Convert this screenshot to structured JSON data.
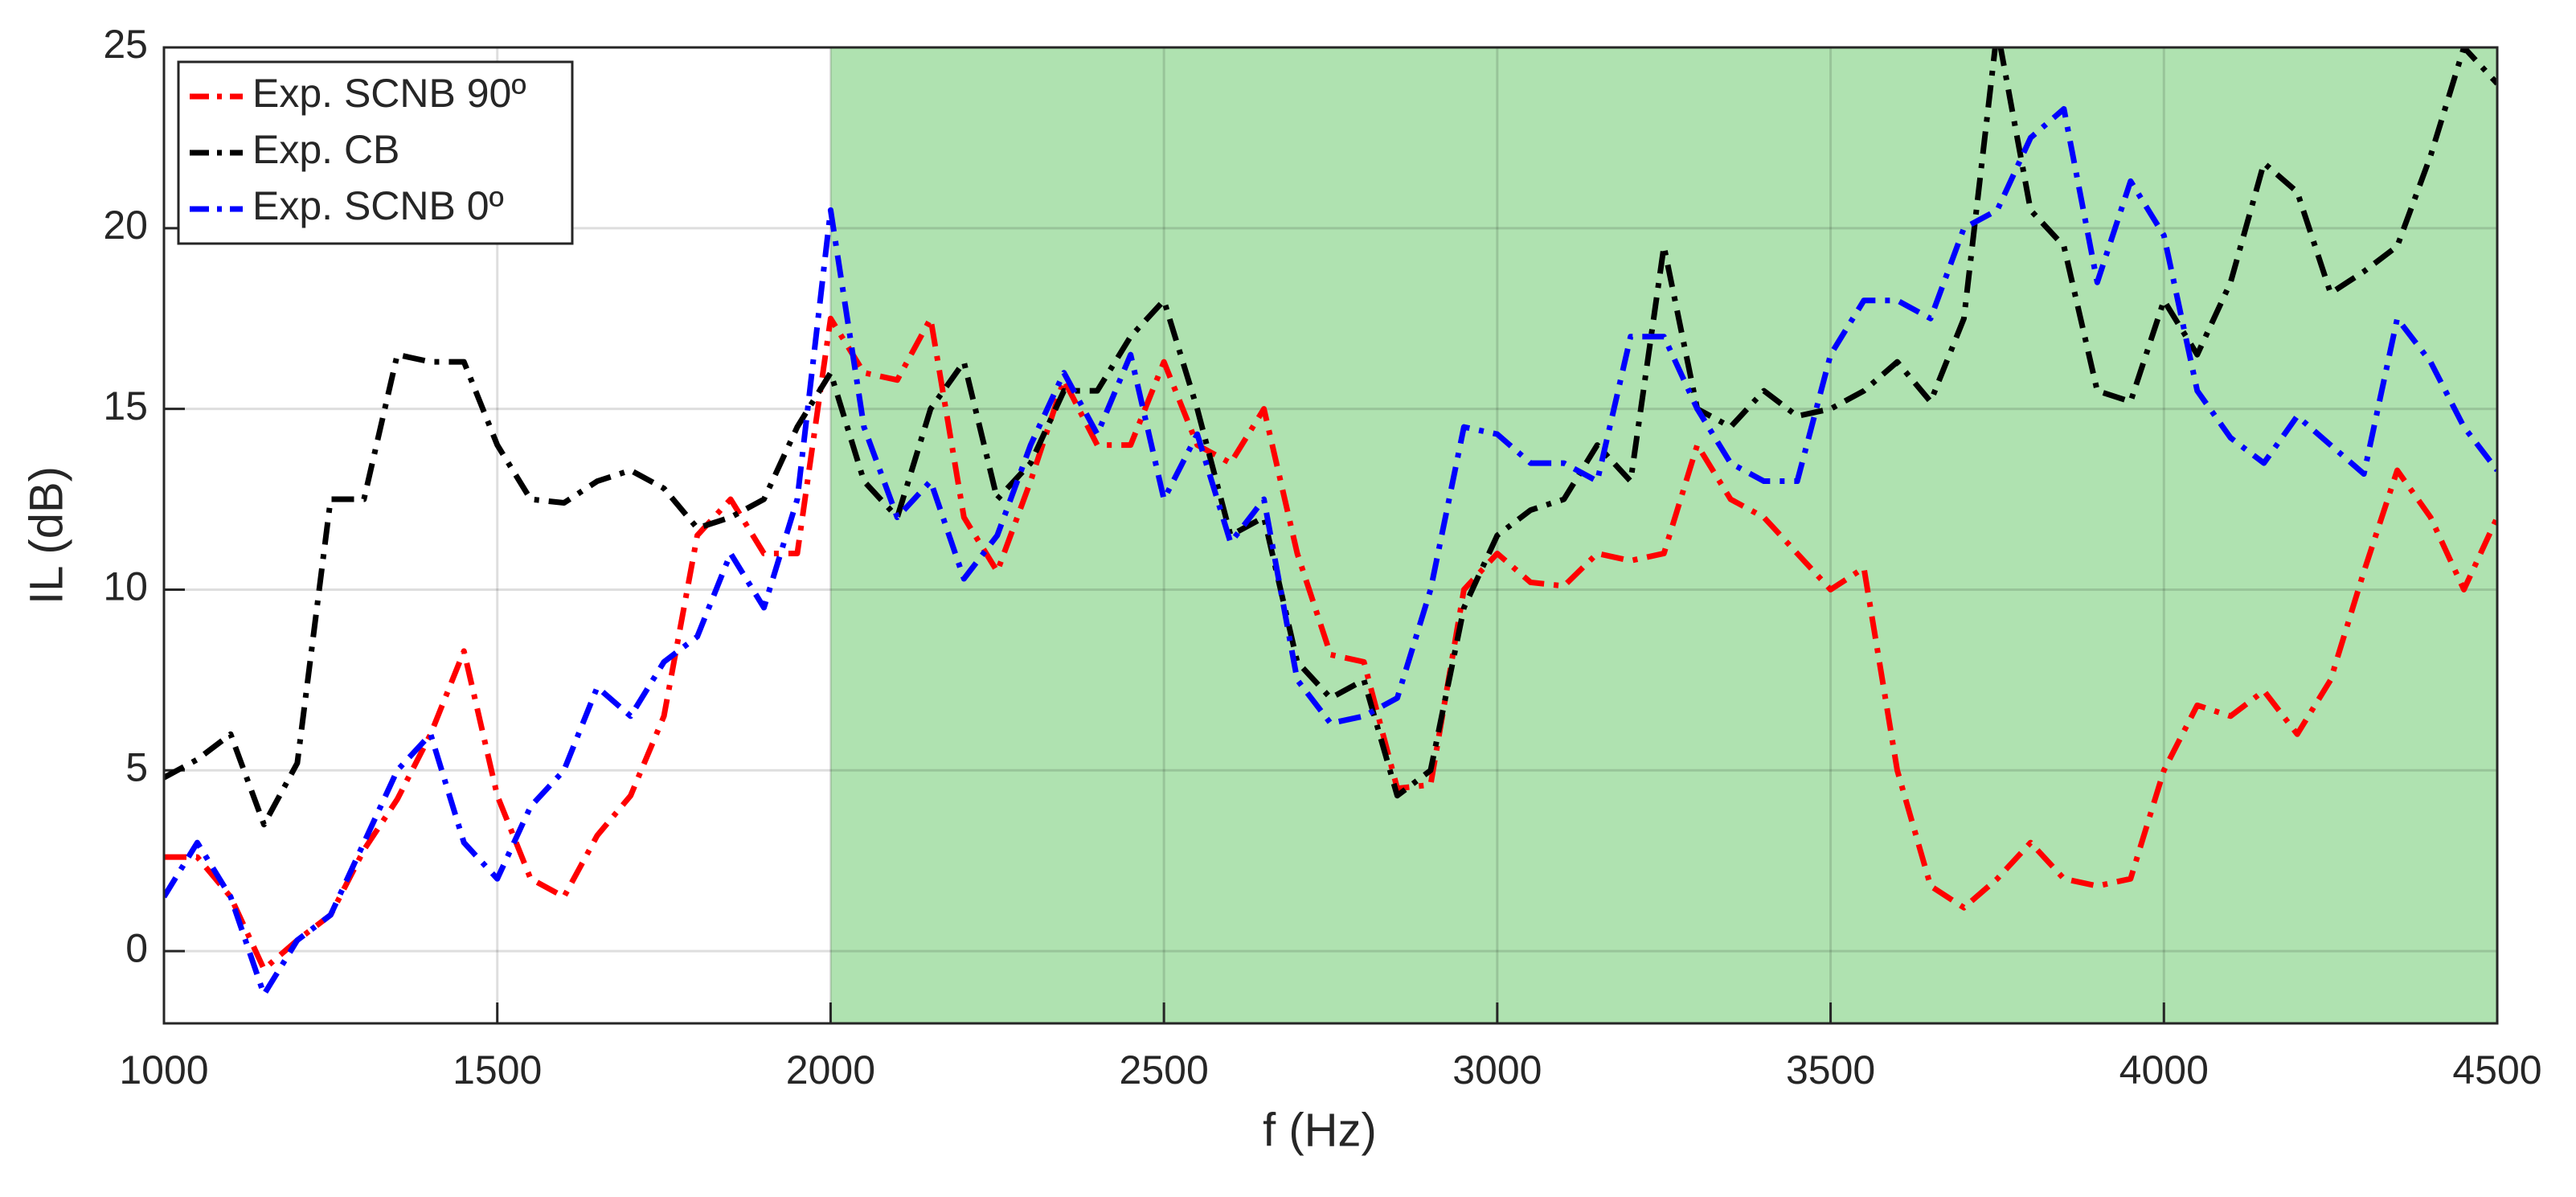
{
  "chart_data": {
    "type": "line",
    "xlabel": "f (Hz)",
    "ylabel": "IL (dB)",
    "x": [
      1000,
      1050,
      1100,
      1150,
      1200,
      1250,
      1300,
      1350,
      1400,
      1450,
      1500,
      1550,
      1600,
      1650,
      1700,
      1750,
      1800,
      1850,
      1900,
      1950,
      2000,
      2050,
      2100,
      2150,
      2200,
      2250,
      2300,
      2350,
      2400,
      2450,
      2500,
      2550,
      2600,
      2650,
      2700,
      2750,
      2800,
      2850,
      2900,
      2950,
      3000,
      3050,
      3100,
      3150,
      3200,
      3250,
      3300,
      3350,
      3400,
      3450,
      3500,
      3550,
      3600,
      3650,
      3700,
      3750,
      3800,
      3850,
      3900,
      3950,
      4000,
      4050,
      4100,
      4150,
      4200,
      4250,
      4300,
      4350,
      4400,
      4450,
      4500
    ],
    "series": [
      {
        "name": "Exp. SCNB 90º",
        "color": "#ff0000",
        "values": [
          2.6,
          2.6,
          1.5,
          -0.5,
          0.3,
          1.0,
          2.8,
          4.2,
          6.0,
          8.3,
          4.3,
          2.0,
          1.5,
          3.2,
          4.3,
          6.5,
          11.5,
          12.5,
          11.0,
          11.0,
          17.5,
          16.0,
          15.8,
          17.5,
          12.0,
          10.5,
          13.0,
          15.8,
          14.0,
          14.0,
          16.3,
          14.0,
          13.5,
          15.0,
          11.0,
          8.2,
          8.0,
          4.5,
          4.6,
          10.0,
          11.0,
          10.2,
          10.1,
          11.0,
          10.8,
          11.0,
          14.0,
          12.5,
          12.0,
          11.0,
          10.0,
          10.6,
          5.0,
          1.8,
          1.2,
          2.0,
          3.0,
          2.0,
          1.8,
          2.0,
          5.0,
          6.8,
          6.5,
          7.2,
          6.0,
          7.5,
          10.5,
          13.3,
          12.0,
          10.0,
          12.0
        ]
      },
      {
        "name": "Exp. CB",
        "color": "#000000",
        "values": [
          4.8,
          5.3,
          6.0,
          3.5,
          5.2,
          12.5,
          12.5,
          16.5,
          16.3,
          16.3,
          14.0,
          12.5,
          12.4,
          13.0,
          13.3,
          12.8,
          11.7,
          12.0,
          12.5,
          14.5,
          16.0,
          13.0,
          12.0,
          15.0,
          16.3,
          12.5,
          13.5,
          15.5,
          15.5,
          17.0,
          18.0,
          15.0,
          11.5,
          12.0,
          8.0,
          7.0,
          7.5,
          4.3,
          5.0,
          9.5,
          11.5,
          12.2,
          12.5,
          14.0,
          13.0,
          19.5,
          15.0,
          14.5,
          15.5,
          14.8,
          15.0,
          15.5,
          16.3,
          15.2,
          17.5,
          25.5,
          20.5,
          19.5,
          15.5,
          15.2,
          18.0,
          16.5,
          18.5,
          21.8,
          21.0,
          18.2,
          18.8,
          19.5,
          22.0,
          25.0,
          24.0
        ]
      },
      {
        "name": "Exp. SCNB 0º",
        "color": "#0000ff",
        "values": [
          1.5,
          3.0,
          1.5,
          -1.2,
          0.3,
          1.0,
          3.0,
          5.0,
          6.0,
          3.0,
          2.0,
          4.0,
          5.0,
          7.3,
          6.5,
          8.0,
          8.7,
          11.0,
          9.5,
          12.5,
          20.5,
          14.5,
          12.0,
          13.0,
          10.3,
          11.5,
          14.0,
          16.0,
          14.3,
          16.5,
          12.5,
          14.3,
          11.3,
          12.5,
          7.5,
          6.3,
          6.5,
          7.0,
          10.0,
          14.5,
          14.3,
          13.5,
          13.5,
          13.0,
          17.0,
          17.0,
          15.0,
          13.5,
          13.0,
          13.0,
          16.5,
          18.0,
          18.0,
          17.5,
          20.0,
          20.5,
          22.5,
          23.3,
          18.5,
          21.3,
          19.8,
          15.5,
          14.2,
          13.5,
          14.8,
          14.0,
          13.2,
          17.5,
          16.3,
          14.5,
          13.3
        ]
      }
    ],
    "xlim": [
      1000,
      4500
    ],
    "xticks": [
      1000,
      1500,
      2000,
      2500,
      3000,
      3500,
      4000,
      4500
    ],
    "ylim": [
      -2,
      25
    ],
    "yticks": [
      0,
      5,
      10,
      15,
      20,
      25
    ],
    "grid": true,
    "legend": "northwest",
    "shaded_region": {
      "xmin": 2000,
      "xmax": 4500,
      "color": "#afe2b0"
    }
  }
}
